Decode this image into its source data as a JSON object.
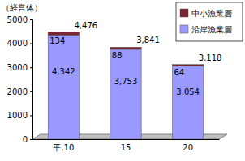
{
  "chart_data": {
    "type": "bar",
    "stacked": true,
    "y_label": "（経営体）",
    "categories": [
      "平.10",
      "15",
      "20"
    ],
    "series": [
      {
        "name": "沿岸漁業層",
        "color": "#9999ff",
        "values": [
          4342,
          3753,
          3054
        ],
        "value_labels": [
          "4,342",
          "3,753",
          "3,054"
        ]
      },
      {
        "name": "中小漁業層",
        "color": "#7b2434",
        "values": [
          134,
          88,
          64
        ]
      }
    ],
    "totals": [
      4476,
      3841,
      3118
    ],
    "total_labels": [
      "4,476",
      "3,841",
      "3,118"
    ],
    "ylim": [
      0,
      5000
    ],
    "yticks": [
      0,
      1000,
      2000,
      3000,
      4000,
      5000
    ],
    "grid": false,
    "legend": "top-right",
    "data_labels": true
  }
}
